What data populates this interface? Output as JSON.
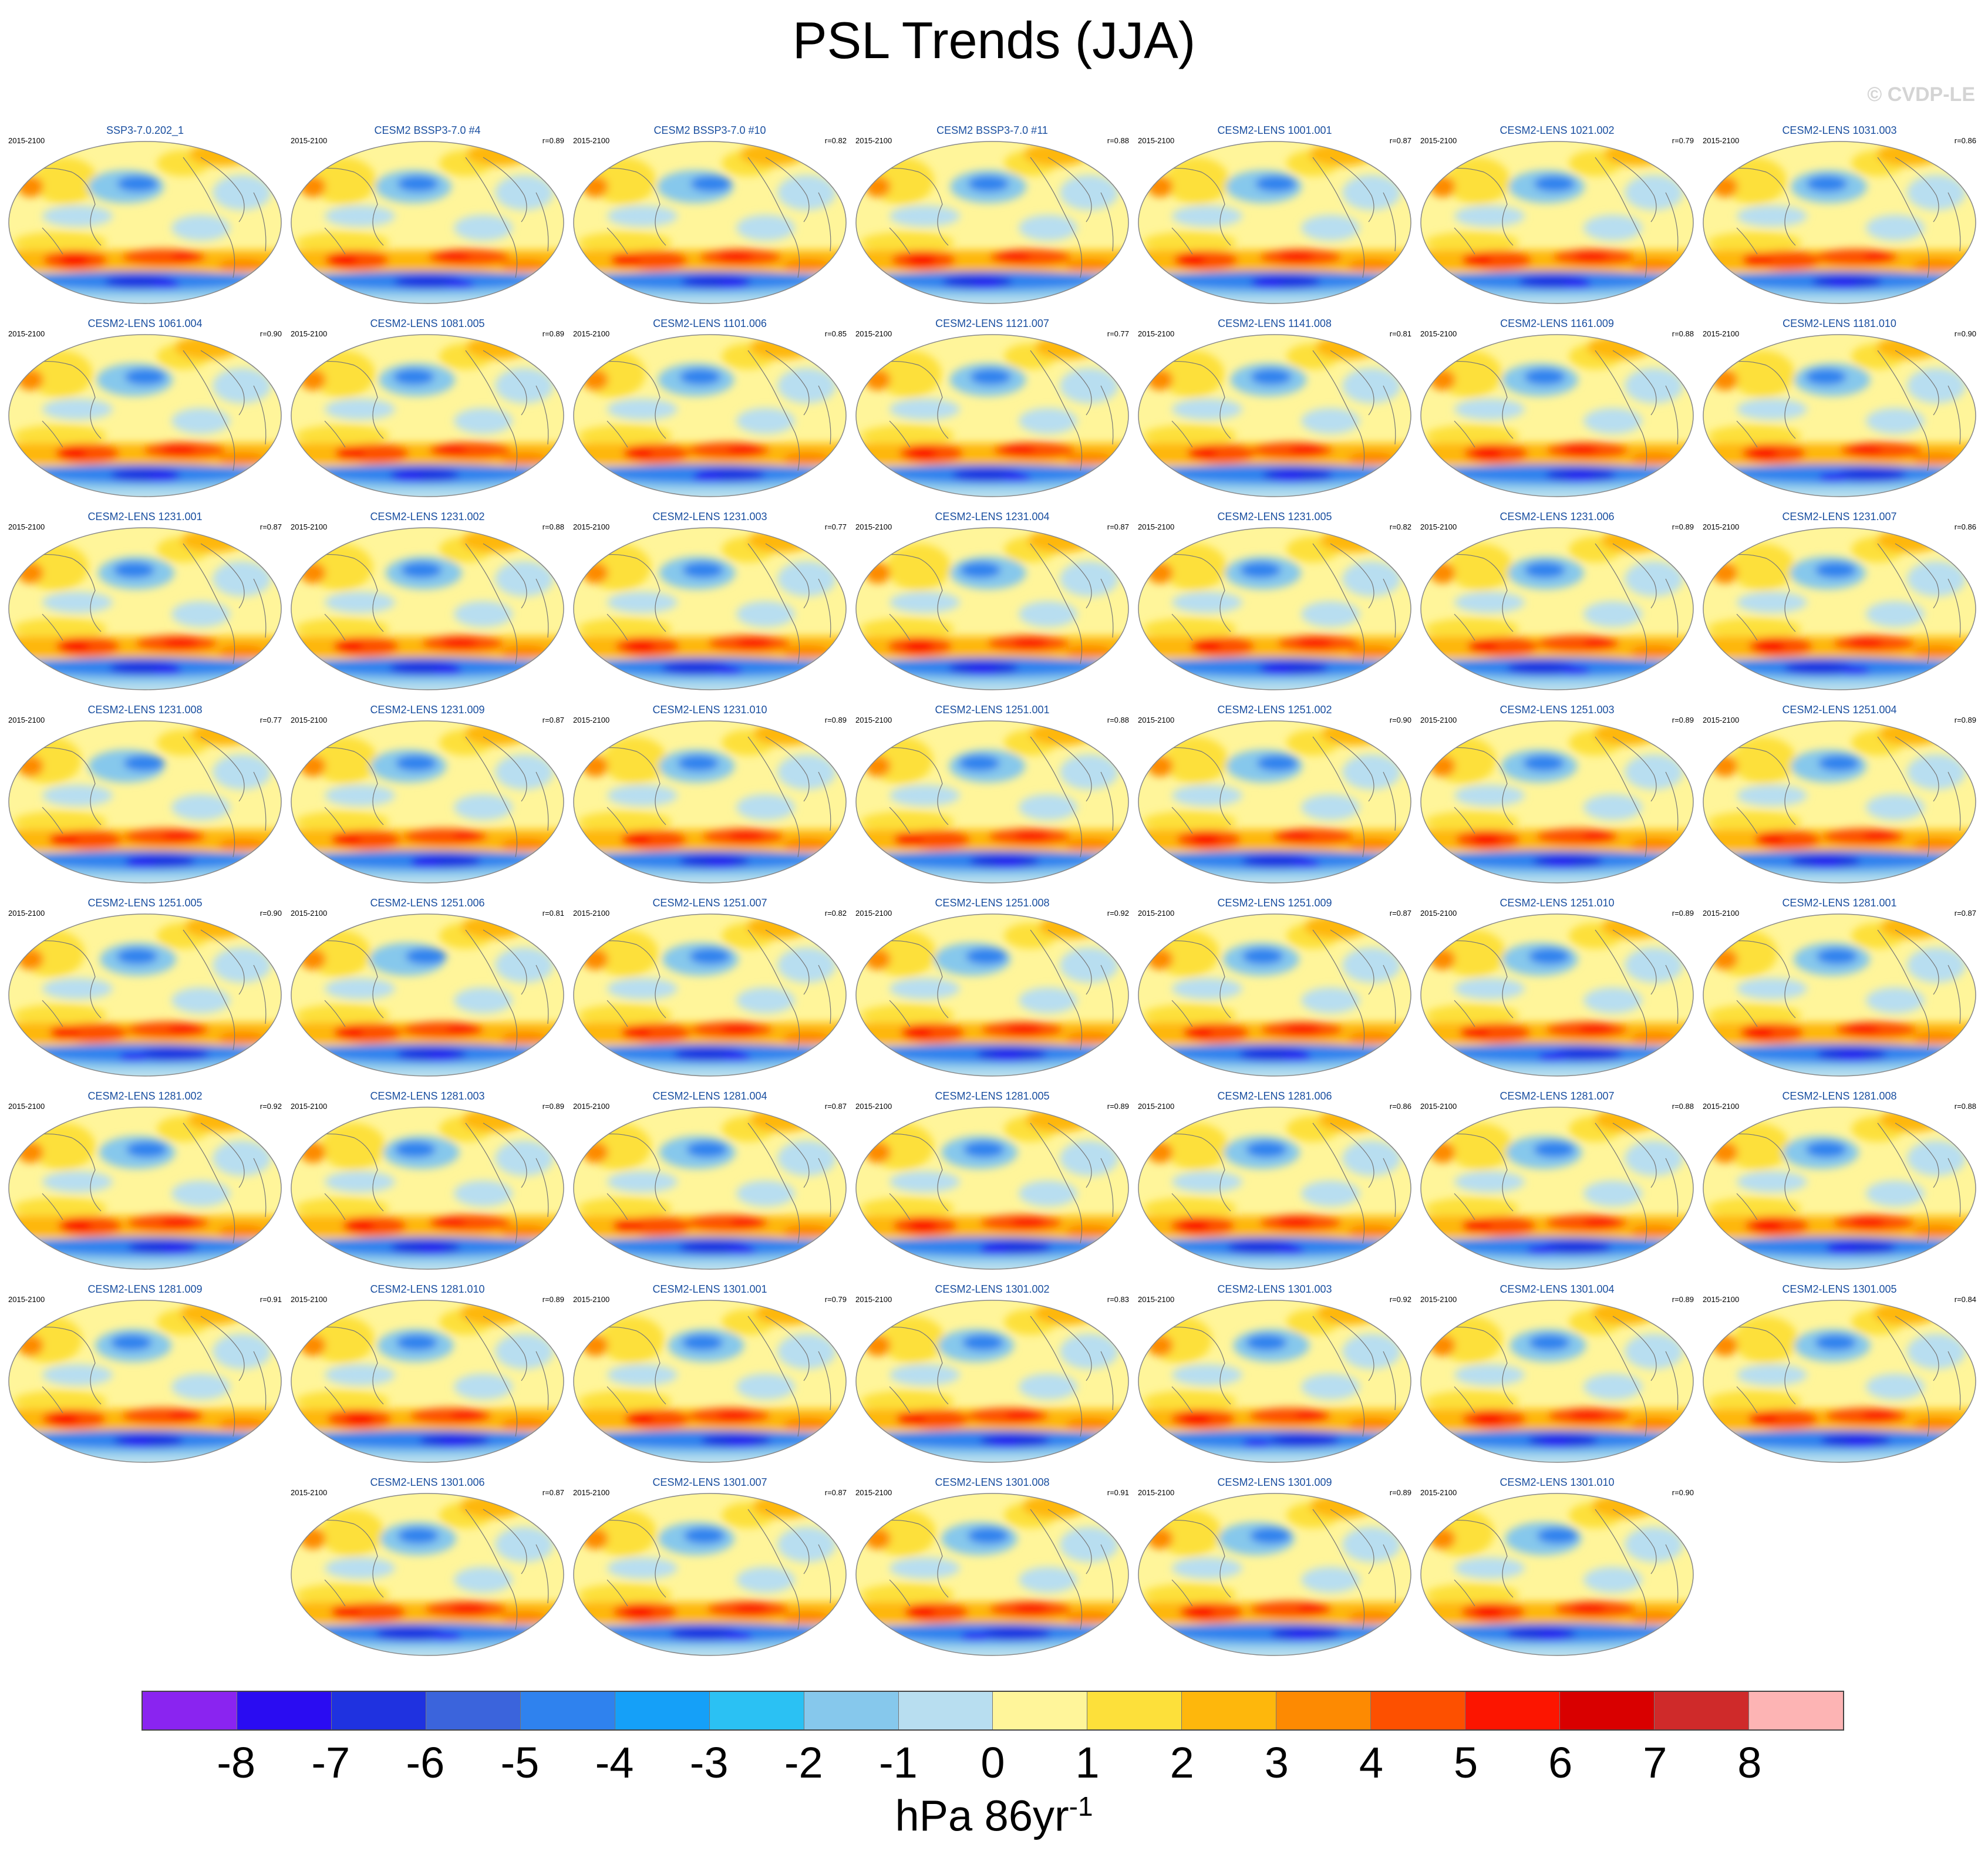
{
  "title": "PSL Trends (JJA)",
  "watermark": "© CVDP-LE",
  "period": "2015-2100",
  "panels": [
    {
      "name": "SSP3-7.0.202_1",
      "r": ""
    },
    {
      "name": "CESM2 BSSP3-7.0 #4",
      "r": "r=0.89"
    },
    {
      "name": "CESM2 BSSP3-7.0 #10",
      "r": "r=0.82"
    },
    {
      "name": "CESM2 BSSP3-7.0 #11",
      "r": "r=0.88"
    },
    {
      "name": "CESM2-LENS 1001.001",
      "r": "r=0.87"
    },
    {
      "name": "CESM2-LENS 1021.002",
      "r": "r=0.79"
    },
    {
      "name": "CESM2-LENS 1031.003",
      "r": "r=0.86"
    },
    {
      "name": "CESM2-LENS 1061.004",
      "r": "r=0.90"
    },
    {
      "name": "CESM2-LENS 1081.005",
      "r": "r=0.89"
    },
    {
      "name": "CESM2-LENS 1101.006",
      "r": "r=0.85"
    },
    {
      "name": "CESM2-LENS 1121.007",
      "r": "r=0.77"
    },
    {
      "name": "CESM2-LENS 1141.008",
      "r": "r=0.81"
    },
    {
      "name": "CESM2-LENS 1161.009",
      "r": "r=0.88"
    },
    {
      "name": "CESM2-LENS 1181.010",
      "r": "r=0.90"
    },
    {
      "name": "CESM2-LENS 1231.001",
      "r": "r=0.87"
    },
    {
      "name": "CESM2-LENS 1231.002",
      "r": "r=0.88"
    },
    {
      "name": "CESM2-LENS 1231.003",
      "r": "r=0.77"
    },
    {
      "name": "CESM2-LENS 1231.004",
      "r": "r=0.87"
    },
    {
      "name": "CESM2-LENS 1231.005",
      "r": "r=0.82"
    },
    {
      "name": "CESM2-LENS 1231.006",
      "r": "r=0.89"
    },
    {
      "name": "CESM2-LENS 1231.007",
      "r": "r=0.86"
    },
    {
      "name": "CESM2-LENS 1231.008",
      "r": "r=0.77"
    },
    {
      "name": "CESM2-LENS 1231.009",
      "r": "r=0.87"
    },
    {
      "name": "CESM2-LENS 1231.010",
      "r": "r=0.89"
    },
    {
      "name": "CESM2-LENS 1251.001",
      "r": "r=0.88"
    },
    {
      "name": "CESM2-LENS 1251.002",
      "r": "r=0.90"
    },
    {
      "name": "CESM2-LENS 1251.003",
      "r": "r=0.89"
    },
    {
      "name": "CESM2-LENS 1251.004",
      "r": "r=0.89"
    },
    {
      "name": "CESM2-LENS 1251.005",
      "r": "r=0.90"
    },
    {
      "name": "CESM2-LENS 1251.006",
      "r": "r=0.81"
    },
    {
      "name": "CESM2-LENS 1251.007",
      "r": "r=0.82"
    },
    {
      "name": "CESM2-LENS 1251.008",
      "r": "r=0.92"
    },
    {
      "name": "CESM2-LENS 1251.009",
      "r": "r=0.87"
    },
    {
      "name": "CESM2-LENS 1251.010",
      "r": "r=0.89"
    },
    {
      "name": "CESM2-LENS 1281.001",
      "r": "r=0.87"
    },
    {
      "name": "CESM2-LENS 1281.002",
      "r": "r=0.92"
    },
    {
      "name": "CESM2-LENS 1281.003",
      "r": "r=0.89"
    },
    {
      "name": "CESM2-LENS 1281.004",
      "r": "r=0.87"
    },
    {
      "name": "CESM2-LENS 1281.005",
      "r": "r=0.89"
    },
    {
      "name": "CESM2-LENS 1281.006",
      "r": "r=0.86"
    },
    {
      "name": "CESM2-LENS 1281.007",
      "r": "r=0.88"
    },
    {
      "name": "CESM2-LENS 1281.008",
      "r": "r=0.88"
    },
    {
      "name": "CESM2-LENS 1281.009",
      "r": "r=0.91"
    },
    {
      "name": "CESM2-LENS 1281.010",
      "r": "r=0.89"
    },
    {
      "name": "CESM2-LENS 1301.001",
      "r": "r=0.79"
    },
    {
      "name": "CESM2-LENS 1301.002",
      "r": "r=0.83"
    },
    {
      "name": "CESM2-LENS 1301.003",
      "r": "r=0.92"
    },
    {
      "name": "CESM2-LENS 1301.004",
      "r": "r=0.89"
    },
    {
      "name": "CESM2-LENS 1301.005",
      "r": "r=0.84"
    },
    {
      "name": "CESM2-LENS 1301.006",
      "r": "r=0.87"
    },
    {
      "name": "CESM2-LENS 1301.007",
      "r": "r=0.87"
    },
    {
      "name": "CESM2-LENS 1301.008",
      "r": "r=0.91"
    },
    {
      "name": "CESM2-LENS 1301.009",
      "r": "r=0.89"
    },
    {
      "name": "CESM2-LENS 1301.010",
      "r": "r=0.90"
    }
  ],
  "colorbar": {
    "colors": [
      "#8a24f0",
      "#2a0cf2",
      "#1f32e0",
      "#3b64dc",
      "#2f82ee",
      "#15a0f8",
      "#2bc1f3",
      "#86c8ec",
      "#b8def0",
      "#fff59a",
      "#fde03a",
      "#feb70c",
      "#fd8a02",
      "#fd5000",
      "#fc1500",
      "#d90000",
      "#cf2a2a",
      "#fdb4b4"
    ],
    "tick_labels": [
      "-8",
      "-7",
      "-6",
      "-5",
      "-4",
      "-3",
      "-2",
      "-1",
      "0",
      "1",
      "2",
      "3",
      "4",
      "5",
      "6",
      "7",
      "8"
    ],
    "units": "hPa 86yr",
    "units_exp": "-1"
  }
}
